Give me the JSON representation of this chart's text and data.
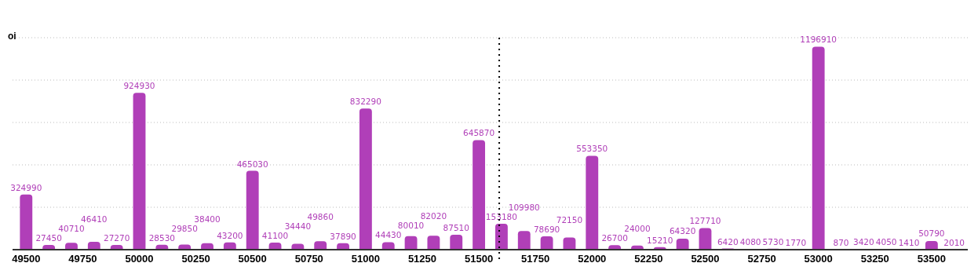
{
  "chart_data": {
    "type": "bar",
    "ylabel": "oi",
    "x": [
      49500,
      49600,
      49700,
      49800,
      49900,
      50000,
      50100,
      50200,
      50300,
      50400,
      50500,
      50600,
      50700,
      50800,
      50900,
      51000,
      51100,
      51200,
      51300,
      51400,
      51500,
      51600,
      51700,
      51800,
      51900,
      52000,
      52100,
      52200,
      52300,
      52400,
      52500,
      52600,
      52700,
      52800,
      52900,
      53000,
      53100,
      53200,
      53300,
      53400,
      53500,
      53600
    ],
    "values": [
      324990,
      27450,
      40710,
      46410,
      27270,
      924930,
      28530,
      29850,
      38400,
      43200,
      465030,
      41100,
      34440,
      49860,
      37890,
      832290,
      44430,
      80010,
      82020,
      87510,
      645870,
      153180,
      109980,
      78690,
      72150,
      553350,
      26700,
      24000,
      15210,
      64320,
      127710,
      6420,
      4080,
      5730,
      1770,
      1196910,
      870,
      3420,
      4050,
      1410,
      50790,
      2010
    ],
    "color": "#b03fb8",
    "data_labels": true,
    "xlim": [
      49440,
      53660
    ],
    "xticks": [
      49500,
      49750,
      50000,
      50250,
      50500,
      50750,
      51000,
      51250,
      51500,
      51750,
      52000,
      52250,
      52500,
      52750,
      53000,
      53250,
      53500
    ],
    "ylim": [
      0,
      1250000
    ],
    "yticks": [
      {
        "value": 0,
        "label": null
      },
      {
        "value": 250000,
        "label": null
      },
      {
        "value": 500000,
        "label": null
      },
      {
        "value": 750000,
        "label": null
      },
      {
        "value": 1000000,
        "label": null
      },
      {
        "value": 1250000,
        "label": null
      }
    ],
    "grid": "y",
    "tick_labels": "x",
    "ref_lines": [
      {
        "axis": "x",
        "value": 51590,
        "line_style": "dotted",
        "color": "#000000"
      }
    ]
  }
}
